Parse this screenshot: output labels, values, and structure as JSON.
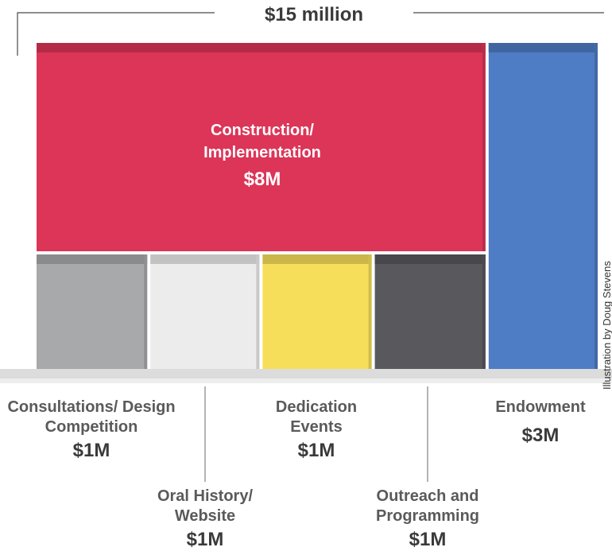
{
  "chart_data": {
    "type": "treemap",
    "total_label": "$15 million",
    "total_value": 15,
    "unit": "M",
    "segments": [
      {
        "name": "Construction/ Implementation",
        "value": 8,
        "value_label": "$8M",
        "color": "#dc3558"
      },
      {
        "name": "Consultations/ Design Competition",
        "value": 1,
        "value_label": "$1M",
        "color": "#a8a9ab"
      },
      {
        "name": "Oral History/ Website",
        "value": 1,
        "value_label": "$1M",
        "color": "#ececec"
      },
      {
        "name": "Dedication Events",
        "value": 1,
        "value_label": "$1M",
        "color": "#f6de5a"
      },
      {
        "name": "Outreach and Programming",
        "value": 1,
        "value_label": "$1M",
        "color": "#58585d"
      },
      {
        "name": "Endowment",
        "value": 3,
        "value_label": "$3M",
        "color": "#4e7cc5"
      }
    ]
  },
  "credit": "Illustration by Doug Stevens"
}
